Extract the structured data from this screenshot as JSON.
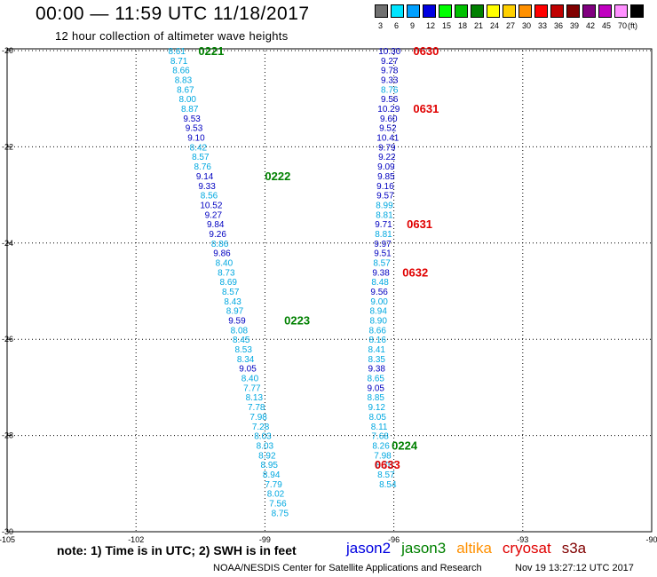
{
  "header": {
    "title": "00:00 — 11:59 UTC 11/18/2017",
    "subtitle": "12 hour collection of altimeter wave heights"
  },
  "legend": {
    "unit": "(ft)",
    "bins": [
      {
        "label": "3",
        "color": "#707070"
      },
      {
        "label": "6",
        "color": "#00e5ff"
      },
      {
        "label": "9",
        "color": "#00a0ff"
      },
      {
        "label": "12",
        "color": "#0000e0"
      },
      {
        "label": "15",
        "color": "#00ff00"
      },
      {
        "label": "18",
        "color": "#00c000"
      },
      {
        "label": "21",
        "color": "#008000"
      },
      {
        "label": "24",
        "color": "#ffff00"
      },
      {
        "label": "27",
        "color": "#ffd000"
      },
      {
        "label": "30",
        "color": "#ff9000"
      },
      {
        "label": "33",
        "color": "#ff0000"
      },
      {
        "label": "36",
        "color": "#c00000"
      },
      {
        "label": "39",
        "color": "#800000"
      },
      {
        "label": "42",
        "color": "#800080"
      },
      {
        "label": "45",
        "color": "#c000c0"
      },
      {
        "label": "70",
        "color": "#ff90ff"
      },
      {
        "label": "",
        "color": "#000000"
      }
    ]
  },
  "map": {
    "lon_range": [
      -105,
      -90
    ],
    "lat_range": [
      -30,
      -19
    ],
    "lon_ticks": [
      "-105",
      "-102",
      "-99",
      "-96",
      "-93",
      "-90"
    ],
    "lat_ticks": [
      "-20",
      "-22",
      "-24",
      "-26",
      "-28",
      "-30"
    ],
    "colors": {
      "light": "#00a8e0",
      "dark": "#0000c0",
      "jason2": "#0000e0",
      "jason3": "#008000",
      "altika": "#ff9000",
      "cryosat": "#e00000",
      "s3a": "#800000"
    }
  },
  "tracks": [
    {
      "id": "track-jason3",
      "points": [
        {
          "lat": -20.0,
          "lon": -101.05,
          "v": "8.61",
          "c": "light"
        },
        {
          "lat": -20.2,
          "lon": -101.0,
          "v": "8.71",
          "c": "light"
        },
        {
          "lat": -20.4,
          "lon": -100.95,
          "v": "8.66",
          "c": "light"
        },
        {
          "lat": -20.6,
          "lon": -100.9,
          "v": "8.83",
          "c": "light"
        },
        {
          "lat": -20.8,
          "lon": -100.85,
          "v": "8.67",
          "c": "light"
        },
        {
          "lat": -21.0,
          "lon": -100.8,
          "v": "8.00",
          "c": "light"
        },
        {
          "lat": -21.2,
          "lon": -100.75,
          "v": "8.87",
          "c": "light"
        },
        {
          "lat": -21.4,
          "lon": -100.7,
          "v": "9.53",
          "c": "dark"
        },
        {
          "lat": -21.6,
          "lon": -100.65,
          "v": "9.53",
          "c": "dark"
        },
        {
          "lat": -21.8,
          "lon": -100.6,
          "v": "9.10",
          "c": "dark"
        },
        {
          "lat": -22.0,
          "lon": -100.55,
          "v": "8.42",
          "c": "light"
        },
        {
          "lat": -22.2,
          "lon": -100.5,
          "v": "8.57",
          "c": "light"
        },
        {
          "lat": -22.4,
          "lon": -100.45,
          "v": "8.76",
          "c": "light"
        },
        {
          "lat": -22.6,
          "lon": -100.4,
          "v": "9.14",
          "c": "dark"
        },
        {
          "lat": -22.8,
          "lon": -100.35,
          "v": "9.33",
          "c": "dark"
        },
        {
          "lat": -23.0,
          "lon": -100.3,
          "v": "8.56",
          "c": "light"
        },
        {
          "lat": -23.2,
          "lon": -100.25,
          "v": "10.52",
          "c": "dark"
        },
        {
          "lat": -23.4,
          "lon": -100.2,
          "v": "9.27",
          "c": "dark"
        },
        {
          "lat": -23.6,
          "lon": -100.15,
          "v": "9.84",
          "c": "dark"
        },
        {
          "lat": -23.8,
          "lon": -100.1,
          "v": "9.26",
          "c": "dark"
        },
        {
          "lat": -24.0,
          "lon": -100.05,
          "v": "8.86",
          "c": "light"
        },
        {
          "lat": -24.2,
          "lon": -100.0,
          "v": "9.86",
          "c": "dark"
        },
        {
          "lat": -24.4,
          "lon": -99.95,
          "v": "8.40",
          "c": "light"
        },
        {
          "lat": -24.6,
          "lon": -99.9,
          "v": "8.73",
          "c": "light"
        },
        {
          "lat": -24.8,
          "lon": -99.85,
          "v": "8.69",
          "c": "light"
        },
        {
          "lat": -25.0,
          "lon": -99.8,
          "v": "8.57",
          "c": "light"
        },
        {
          "lat": -25.2,
          "lon": -99.75,
          "v": "8.43",
          "c": "light"
        },
        {
          "lat": -25.4,
          "lon": -99.7,
          "v": "8.97",
          "c": "light"
        },
        {
          "lat": -25.6,
          "lon": -99.65,
          "v": "9.59",
          "c": "dark"
        },
        {
          "lat": -25.8,
          "lon": -99.6,
          "v": "8.08",
          "c": "light"
        },
        {
          "lat": -26.0,
          "lon": -99.55,
          "v": "8.45",
          "c": "light"
        },
        {
          "lat": -26.2,
          "lon": -99.5,
          "v": "8.53",
          "c": "light"
        },
        {
          "lat": -26.4,
          "lon": -99.45,
          "v": "8.34",
          "c": "light"
        },
        {
          "lat": -26.6,
          "lon": -99.4,
          "v": "9.05",
          "c": "dark"
        },
        {
          "lat": -26.8,
          "lon": -99.35,
          "v": "8.40",
          "c": "light"
        },
        {
          "lat": -27.0,
          "lon": -99.3,
          "v": "7.77",
          "c": "light"
        },
        {
          "lat": -27.2,
          "lon": -99.25,
          "v": "8.13",
          "c": "light"
        },
        {
          "lat": -27.4,
          "lon": -99.2,
          "v": "7.78",
          "c": "light"
        },
        {
          "lat": -27.6,
          "lon": -99.15,
          "v": "7.98",
          "c": "light"
        },
        {
          "lat": -27.8,
          "lon": -99.1,
          "v": "7.28",
          "c": "light"
        },
        {
          "lat": -28.0,
          "lon": -99.05,
          "v": "8.03",
          "c": "light"
        },
        {
          "lat": -28.2,
          "lon": -99.0,
          "v": "8.03",
          "c": "light"
        },
        {
          "lat": -28.4,
          "lon": -98.95,
          "v": "8.92",
          "c": "light"
        },
        {
          "lat": -28.6,
          "lon": -98.9,
          "v": "8.95",
          "c": "light"
        },
        {
          "lat": -28.8,
          "lon": -98.85,
          "v": "8.94",
          "c": "light"
        },
        {
          "lat": -29.0,
          "lon": -98.8,
          "v": "7.79",
          "c": "light"
        },
        {
          "lat": -29.2,
          "lon": -98.75,
          "v": "8.02",
          "c": "light"
        },
        {
          "lat": -29.4,
          "lon": -98.7,
          "v": "7.56",
          "c": "light"
        },
        {
          "lat": -29.6,
          "lon": -98.65,
          "v": "8.75",
          "c": "light"
        }
      ]
    },
    {
      "id": "track-cryosat",
      "points": [
        {
          "lat": -20.0,
          "lon": -96.1,
          "v": "10.30",
          "c": "dark"
        },
        {
          "lat": -20.2,
          "lon": -96.1,
          "v": "9.27",
          "c": "dark"
        },
        {
          "lat": -20.4,
          "lon": -96.1,
          "v": "9.78",
          "c": "dark"
        },
        {
          "lat": -20.6,
          "lon": -96.1,
          "v": "9.33",
          "c": "dark"
        },
        {
          "lat": -20.8,
          "lon": -96.1,
          "v": "8.76",
          "c": "light"
        },
        {
          "lat": -21.0,
          "lon": -96.1,
          "v": "9.56",
          "c": "dark"
        },
        {
          "lat": -21.2,
          "lon": -96.12,
          "v": "10.29",
          "c": "dark"
        },
        {
          "lat": -21.4,
          "lon": -96.12,
          "v": "9.60",
          "c": "dark"
        },
        {
          "lat": -21.6,
          "lon": -96.14,
          "v": "9.52",
          "c": "dark"
        },
        {
          "lat": -21.8,
          "lon": -96.14,
          "v": "10.41",
          "c": "dark"
        },
        {
          "lat": -22.0,
          "lon": -96.16,
          "v": "9.79",
          "c": "dark"
        },
        {
          "lat": -22.2,
          "lon": -96.16,
          "v": "9.22",
          "c": "dark"
        },
        {
          "lat": -22.4,
          "lon": -96.18,
          "v": "9.09",
          "c": "dark"
        },
        {
          "lat": -22.6,
          "lon": -96.18,
          "v": "9.85",
          "c": "dark"
        },
        {
          "lat": -22.8,
          "lon": -96.2,
          "v": "9.16",
          "c": "dark"
        },
        {
          "lat": -23.0,
          "lon": -96.2,
          "v": "9.57",
          "c": "dark"
        },
        {
          "lat": -23.2,
          "lon": -96.22,
          "v": "8.99",
          "c": "light"
        },
        {
          "lat": -23.4,
          "lon": -96.22,
          "v": "8.81",
          "c": "light"
        },
        {
          "lat": -23.6,
          "lon": -96.24,
          "v": "9.71",
          "c": "dark"
        },
        {
          "lat": -23.8,
          "lon": -96.24,
          "v": "8.81",
          "c": "light"
        },
        {
          "lat": -24.0,
          "lon": -96.26,
          "v": "9.97",
          "c": "dark"
        },
        {
          "lat": -24.2,
          "lon": -96.26,
          "v": "9.51",
          "c": "dark"
        },
        {
          "lat": -24.4,
          "lon": -96.28,
          "v": "8.57",
          "c": "light"
        },
        {
          "lat": -24.6,
          "lon": -96.3,
          "v": "9.38",
          "c": "dark"
        },
        {
          "lat": -24.8,
          "lon": -96.32,
          "v": "8.48",
          "c": "light"
        },
        {
          "lat": -25.0,
          "lon": -96.34,
          "v": "9.56",
          "c": "dark"
        },
        {
          "lat": -25.2,
          "lon": -96.34,
          "v": "9.00",
          "c": "light"
        },
        {
          "lat": -25.4,
          "lon": -96.36,
          "v": "8.94",
          "c": "light"
        },
        {
          "lat": -25.6,
          "lon": -96.36,
          "v": "8.90",
          "c": "light"
        },
        {
          "lat": -25.8,
          "lon": -96.38,
          "v": "8.66",
          "c": "light"
        },
        {
          "lat": -26.0,
          "lon": -96.38,
          "v": "8.16",
          "c": "light"
        },
        {
          "lat": -26.2,
          "lon": -96.4,
          "v": "8.41",
          "c": "light"
        },
        {
          "lat": -26.4,
          "lon": -96.4,
          "v": "8.35",
          "c": "light"
        },
        {
          "lat": -26.6,
          "lon": -96.4,
          "v": "9.38",
          "c": "dark"
        },
        {
          "lat": -26.8,
          "lon": -96.42,
          "v": "8.65",
          "c": "light"
        },
        {
          "lat": -27.0,
          "lon": -96.42,
          "v": "9.05",
          "c": "dark"
        },
        {
          "lat": -27.2,
          "lon": -96.42,
          "v": "8.85",
          "c": "light"
        },
        {
          "lat": -27.4,
          "lon": -96.4,
          "v": "9.12",
          "c": "light"
        },
        {
          "lat": -27.6,
          "lon": -96.38,
          "v": "8.05",
          "c": "light"
        },
        {
          "lat": -27.8,
          "lon": -96.34,
          "v": "8.11",
          "c": "light"
        },
        {
          "lat": -28.0,
          "lon": -96.32,
          "v": "7.68",
          "c": "light"
        },
        {
          "lat": -28.2,
          "lon": -96.3,
          "v": "8.26",
          "c": "light"
        },
        {
          "lat": -28.4,
          "lon": -96.26,
          "v": "7.98",
          "c": "light"
        },
        {
          "lat": -28.6,
          "lon": -96.22,
          "v": "8.70",
          "c": "light"
        },
        {
          "lat": -28.8,
          "lon": -96.18,
          "v": "8.57",
          "c": "light"
        },
        {
          "lat": -29.0,
          "lon": -96.14,
          "v": "8.54",
          "c": "light"
        }
      ]
    }
  ],
  "time_tags": [
    {
      "text": "0221",
      "lon": -100.55,
      "lat": -20.0,
      "sat": "jason3"
    },
    {
      "text": "0222",
      "lon": -99.0,
      "lat": -22.6,
      "sat": "jason3"
    },
    {
      "text": "0223",
      "lon": -98.55,
      "lat": -25.6,
      "sat": "jason3"
    },
    {
      "text": "0224",
      "lon": -96.05,
      "lat": -28.2,
      "sat": "jason3"
    },
    {
      "text": "0630",
      "lon": -95.55,
      "lat": -20.0,
      "sat": "cryosat"
    },
    {
      "text": "0631",
      "lon": -95.55,
      "lat": -21.2,
      "sat": "cryosat"
    },
    {
      "text": "0631",
      "lon": -95.7,
      "lat": -23.6,
      "sat": "cryosat"
    },
    {
      "text": "0632",
      "lon": -95.8,
      "lat": -24.6,
      "sat": "cryosat"
    },
    {
      "text": "0633",
      "lon": -96.45,
      "lat": -28.6,
      "sat": "cryosat"
    }
  ],
  "footer": {
    "note": "note:  1) Time is in UTC;  2) SWH is in feet",
    "satellites": [
      {
        "name": "jason2",
        "color": "#0000e0"
      },
      {
        "name": "jason3",
        "color": "#008000"
      },
      {
        "name": "altika",
        "color": "#ff9000"
      },
      {
        "name": "cryosat",
        "color": "#e00000"
      },
      {
        "name": "s3a",
        "color": "#800000"
      }
    ],
    "credit": "NOAA/NESDIS Center for Satellite Applications and Research",
    "timestamp": "Nov 19 13:27:12 UTC 2017"
  }
}
